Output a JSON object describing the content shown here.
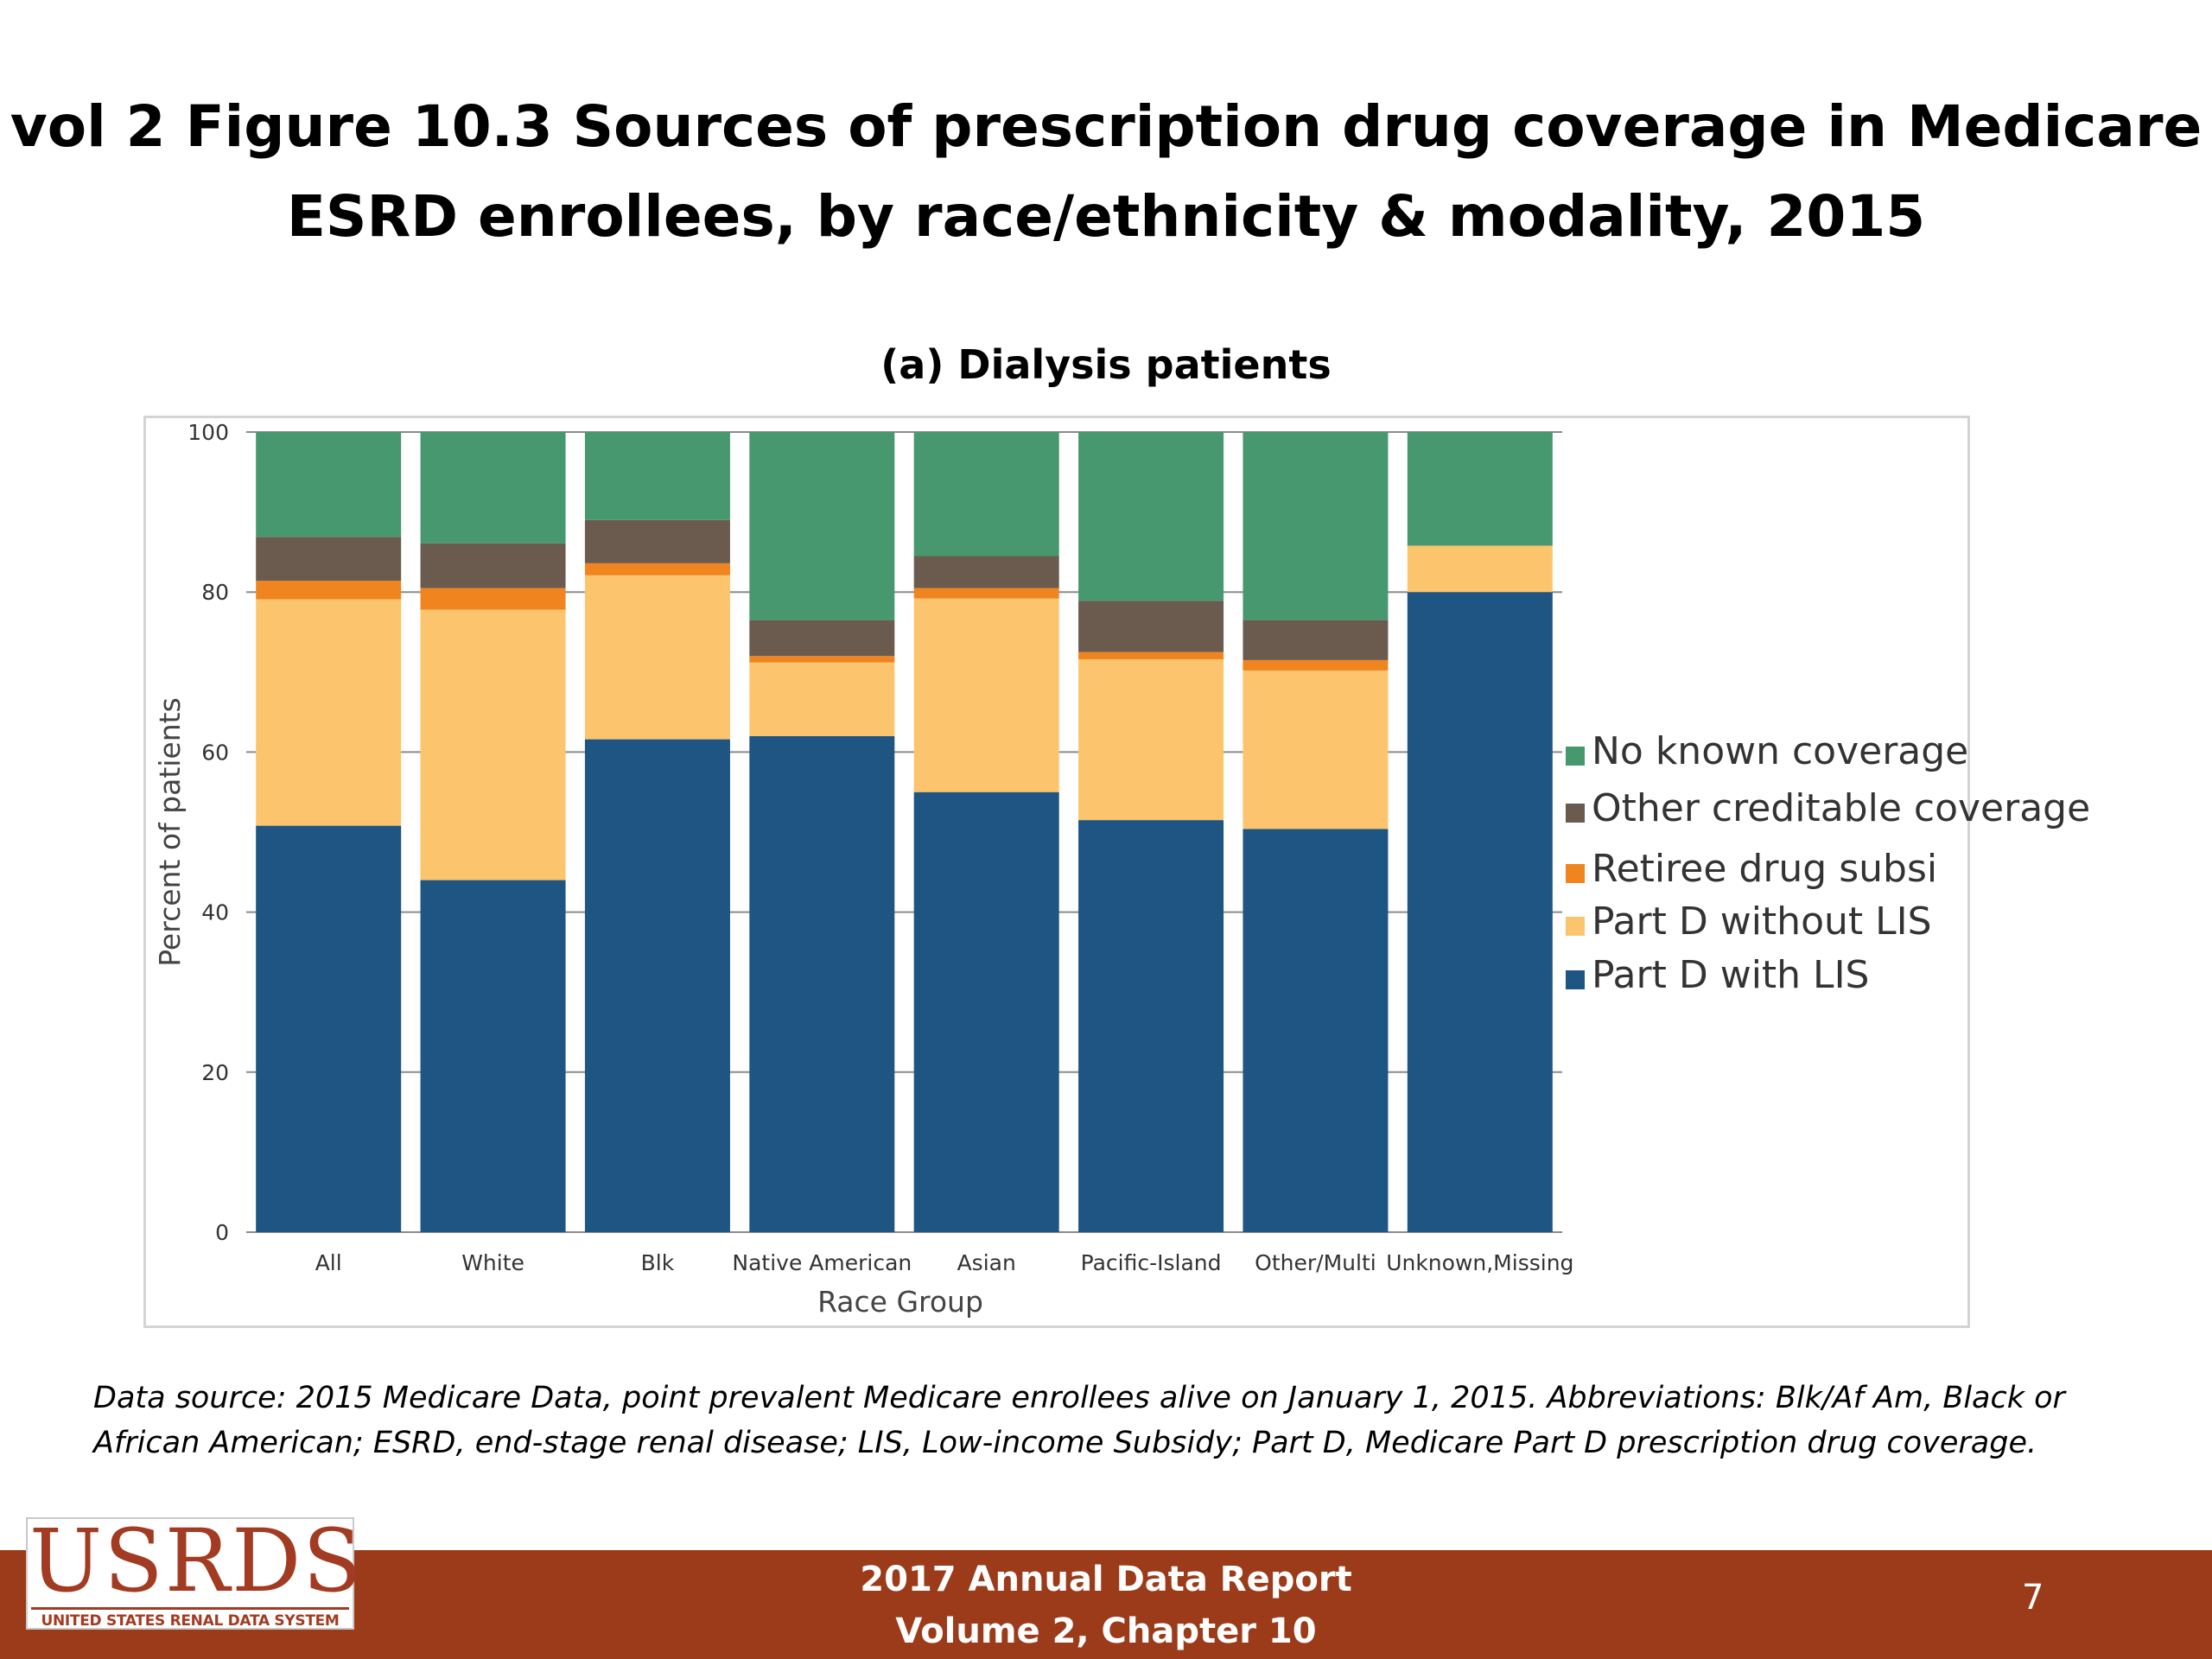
{
  "slide": {
    "title_line1": "vol 2 Figure 10.3 Sources of prescription drug coverage in Medicare",
    "title_line2": "ESRD enrollees, by race/ethnicity & modality, 2015",
    "footnote": "Data source: 2015 Medicare Data, point prevalent Medicare enrollees alive on January 1, 2015. Abbreviations: Blk/Af Am, Black or African American; ESRD, end-stage renal disease; LIS, Low-income Subsidy; Part D, Medicare Part D prescription drug coverage.",
    "footer_line1": "2017 Annual Data Report",
    "footer_line2": "Volume 2, Chapter 10",
    "page_number": "7",
    "logo_text": "USRDS",
    "logo_subtext": "UNITED STATES RENAL DATA SYSTEM"
  },
  "chart_data": {
    "type": "bar",
    "stacked": true,
    "title": "(a) Dialysis patients",
    "xlabel": "Race Group",
    "ylabel": "Percent of patients",
    "ylim": [
      0,
      100
    ],
    "yticks": [
      0,
      20,
      40,
      60,
      80,
      100
    ],
    "grid": true,
    "legend_position": "right",
    "categories": [
      "All",
      "White",
      "Blk",
      "Native American",
      "Asian",
      "Pacific-Island",
      "Other/Multi",
      "Unknown,Missing"
    ],
    "series": [
      {
        "name": "Part D with LIS",
        "color": "#1f5583",
        "values": [
          50.8,
          44.0,
          61.6,
          62.0,
          55.0,
          51.5,
          50.4,
          80.0
        ]
      },
      {
        "name": "Part D without LIS",
        "color": "#fcc56d",
        "values": [
          28.3,
          33.8,
          20.5,
          9.2,
          24.2,
          20.1,
          19.8,
          5.8
        ]
      },
      {
        "name": "Retiree drug subsi",
        "color": "#f0841f",
        "values": [
          2.3,
          2.7,
          1.5,
          0.8,
          1.3,
          0.9,
          1.3,
          0.0
        ]
      },
      {
        "name": "Other creditable coverage",
        "color": "#6b5b4f",
        "values": [
          5.5,
          5.6,
          5.4,
          4.5,
          4.0,
          6.4,
          5.0,
          0.0
        ]
      },
      {
        "name": "No known coverage",
        "color": "#47986f",
        "values": [
          13.1,
          13.9,
          11.0,
          23.5,
          15.5,
          21.1,
          23.5,
          14.2
        ]
      }
    ],
    "legend_order": [
      "No known coverage",
      "Other creditable coverage",
      "Retiree drug subsi",
      "Part D without LIS",
      "Part D with LIS"
    ]
  }
}
